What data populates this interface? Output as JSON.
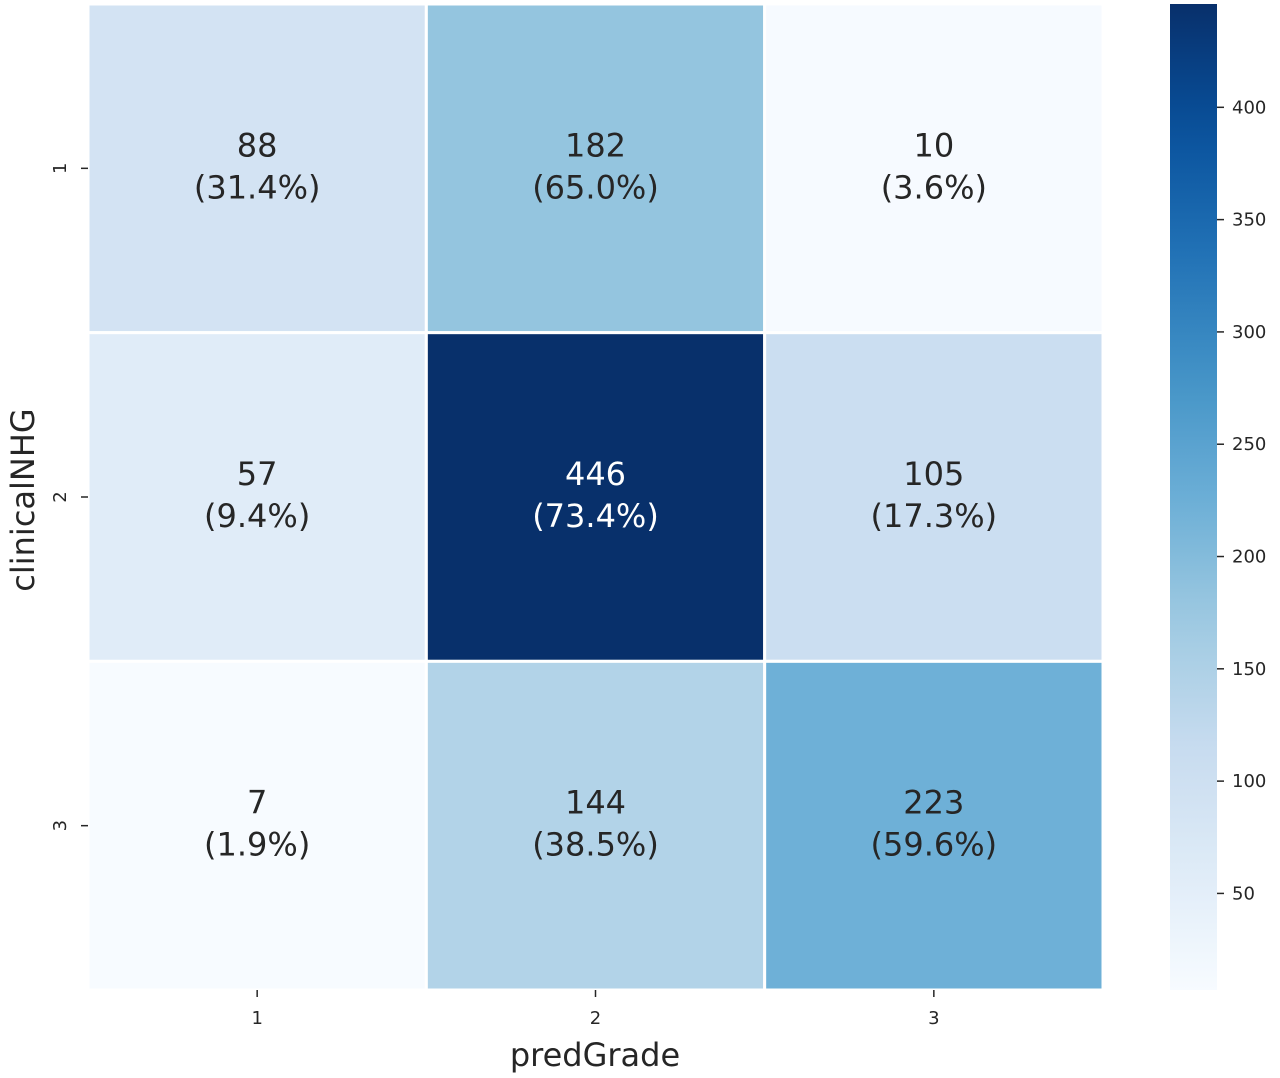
{
  "chart_data": {
    "type": "heatmap",
    "title": "",
    "xlabel": "predGrade",
    "ylabel": "clinicalNHG",
    "x_categories": [
      "1",
      "2",
      "3"
    ],
    "y_categories": [
      "1",
      "2",
      "3"
    ],
    "values": [
      [
        88,
        182,
        10
      ],
      [
        57,
        446,
        105
      ],
      [
        7,
        144,
        223
      ]
    ],
    "row_percent_labels": [
      [
        "(31.4%)",
        "(65.0%)",
        "(3.6%)"
      ],
      [
        "(9.4%)",
        "(73.4%)",
        "(17.3%)"
      ],
      [
        "(1.9%)",
        "(38.5%)",
        "(59.6%)"
      ]
    ],
    "colormap": "Blues",
    "color_range": [
      7,
      446
    ],
    "colorbar_ticks": [
      "50",
      "100",
      "150",
      "200",
      "250",
      "300",
      "350",
      "400"
    ],
    "colorbar_tick_values": [
      50,
      100,
      150,
      200,
      250,
      300,
      350,
      400
    ],
    "grid_line_color": "#ffffff",
    "light_text_color": "#ffffff",
    "dark_text_color": "#262626"
  }
}
